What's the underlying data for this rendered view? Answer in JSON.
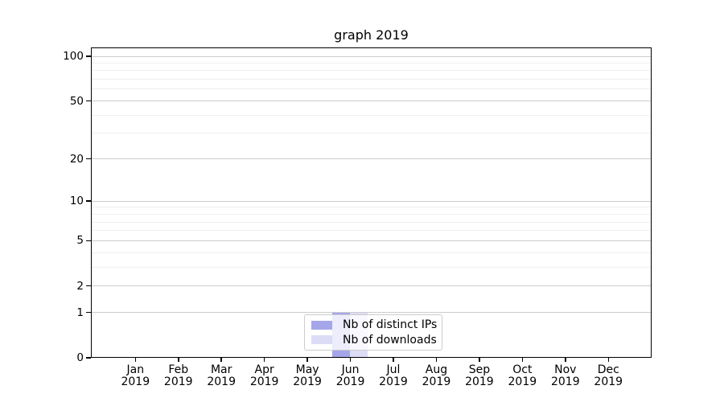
{
  "title": "graph 2019",
  "chart_data": {
    "type": "bar",
    "title": "graph 2019",
    "categories": [
      "Jan 2019",
      "Feb 2019",
      "Mar 2019",
      "Apr 2019",
      "May 2019",
      "Jun 2019",
      "Jul 2019",
      "Aug 2019",
      "Sep 2019",
      "Oct 2019",
      "Nov 2019",
      "Dec 2019"
    ],
    "series": [
      {
        "name": "Nb of distinct IPs",
        "color": "#a5a6ea",
        "values": [
          0,
          0,
          0,
          0,
          0,
          1,
          0,
          0,
          0,
          0,
          0,
          0
        ]
      },
      {
        "name": "Nb of downloads",
        "color": "#dcdcf7",
        "values": [
          0,
          0,
          0,
          0,
          0,
          1,
          0,
          0,
          0,
          0,
          0,
          0
        ]
      }
    ],
    "xlabel": "",
    "ylabel": "",
    "y_axis": {
      "scale": "symlog",
      "tick_values": [
        0,
        1,
        2,
        5,
        10,
        20,
        50,
        100
      ],
      "minor_gridline_values": [
        3,
        4,
        6,
        7,
        8,
        9,
        30,
        40,
        60,
        70,
        80,
        90
      ],
      "min": 0,
      "max": 115
    },
    "grid": true,
    "legend": {
      "position": "inside-bottom-center",
      "items": [
        "Nb of distinct IPs",
        "Nb of downloads"
      ]
    },
    "colors": {
      "axis": "#000000",
      "major_grid": "#cccccc",
      "minor_grid": "#efefef",
      "text": "#000000",
      "legend_border": "#cccccc",
      "background": "#ffffff"
    }
  }
}
